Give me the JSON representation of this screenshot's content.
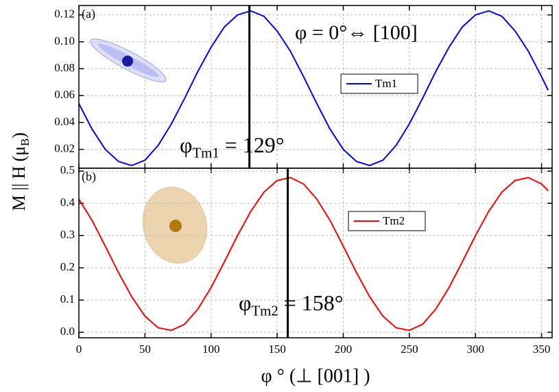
{
  "chart_data": [
    {
      "type": "line",
      "panel": "(a)",
      "ylabel": {
        "text": "M || H (μ",
        "sub": "B",
        "rest": ")"
      },
      "x": [
        0,
        10,
        20,
        30,
        40,
        50,
        60,
        70,
        80,
        90,
        100,
        110,
        120,
        130,
        140,
        150,
        160,
        170,
        180,
        190,
        200,
        210,
        220,
        230,
        240,
        250,
        260,
        270,
        280,
        290,
        300,
        310,
        320,
        330,
        340,
        350,
        355
      ],
      "series": [
        {
          "name": "Tm1",
          "color": "#0000ff",
          "values": [
            0.054,
            0.035,
            0.02,
            0.011,
            0.008,
            0.012,
            0.023,
            0.039,
            0.058,
            0.078,
            0.096,
            0.111,
            0.12,
            0.123,
            0.119,
            0.108,
            0.093,
            0.074,
            0.054,
            0.035,
            0.02,
            0.011,
            0.008,
            0.012,
            0.023,
            0.039,
            0.058,
            0.078,
            0.096,
            0.111,
            0.12,
            0.123,
            0.119,
            0.108,
            0.093,
            0.074,
            0.064
          ]
        }
      ],
      "xlim": [
        0,
        358
      ],
      "xticks": [
        0,
        50,
        100,
        150,
        200,
        250,
        300,
        350
      ],
      "ylim": [
        0.006,
        0.127
      ],
      "yticks": [
        0.02,
        0.04,
        0.06,
        0.08,
        {
          "value": 0.1,
          "label": "0.10"
        },
        0.12
      ],
      "grid": true,
      "vline": 129,
      "annotations": [
        {
          "text": "φ = 0°⇔ [100]"
        },
        {
          "text": "φ",
          "sub": "Tm1",
          "rest": " = 129°"
        }
      ]
    },
    {
      "type": "line",
      "panel": "(b)",
      "xlabel": "φ °  (⊥ [001] )",
      "x": [
        0,
        10,
        20,
        30,
        40,
        50,
        60,
        70,
        80,
        90,
        100,
        110,
        120,
        130,
        140,
        150,
        160,
        170,
        180,
        190,
        200,
        210,
        220,
        230,
        240,
        250,
        260,
        270,
        280,
        290,
        300,
        310,
        320,
        330,
        340,
        350,
        355
      ],
      "series": [
        {
          "name": "Tm2",
          "color": "#ff0000",
          "values": [
            0.413,
            0.347,
            0.267,
            0.185,
            0.11,
            0.05,
            0.014,
            0.006,
            0.025,
            0.072,
            0.139,
            0.218,
            0.3,
            0.375,
            0.435,
            0.471,
            0.48,
            0.46,
            0.413,
            0.347,
            0.267,
            0.185,
            0.11,
            0.05,
            0.014,
            0.006,
            0.025,
            0.072,
            0.139,
            0.218,
            0.3,
            0.375,
            0.435,
            0.471,
            0.48,
            0.46,
            0.439
          ]
        }
      ],
      "xlim": [
        0,
        358
      ],
      "xticks": [
        0,
        50,
        100,
        150,
        200,
        250,
        300,
        350
      ],
      "ylim": [
        -0.017,
        0.509
      ],
      "yticks": [
        {
          "value": 0,
          "label": "0.0"
        },
        0.1,
        0.2,
        0.3,
        0.4,
        0.5
      ],
      "grid": true,
      "vline": 158,
      "annotations": [
        {
          "text": "φ",
          "sub": "Tm2",
          "rest": " = 158°"
        }
      ]
    }
  ]
}
